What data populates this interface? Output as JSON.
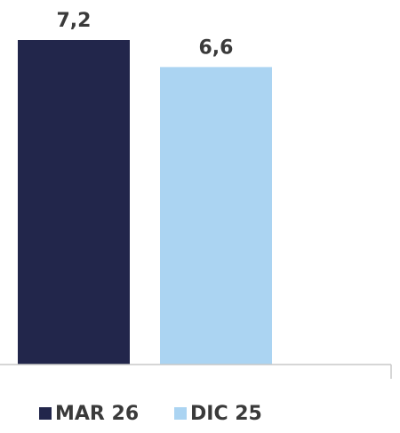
{
  "chart_data": {
    "type": "bar",
    "categories": [
      ""
    ],
    "series": [
      {
        "name": "MAR 26",
        "values": [
          7.2
        ],
        "color": "#22264b",
        "label": "7,2"
      },
      {
        "name": "DIC 25",
        "values": [
          6.6
        ],
        "color": "#abd4f2",
        "label": "6,6"
      }
    ],
    "axis_color": "#c8c8c8",
    "legend_placement": "bottom",
    "grid": false
  }
}
